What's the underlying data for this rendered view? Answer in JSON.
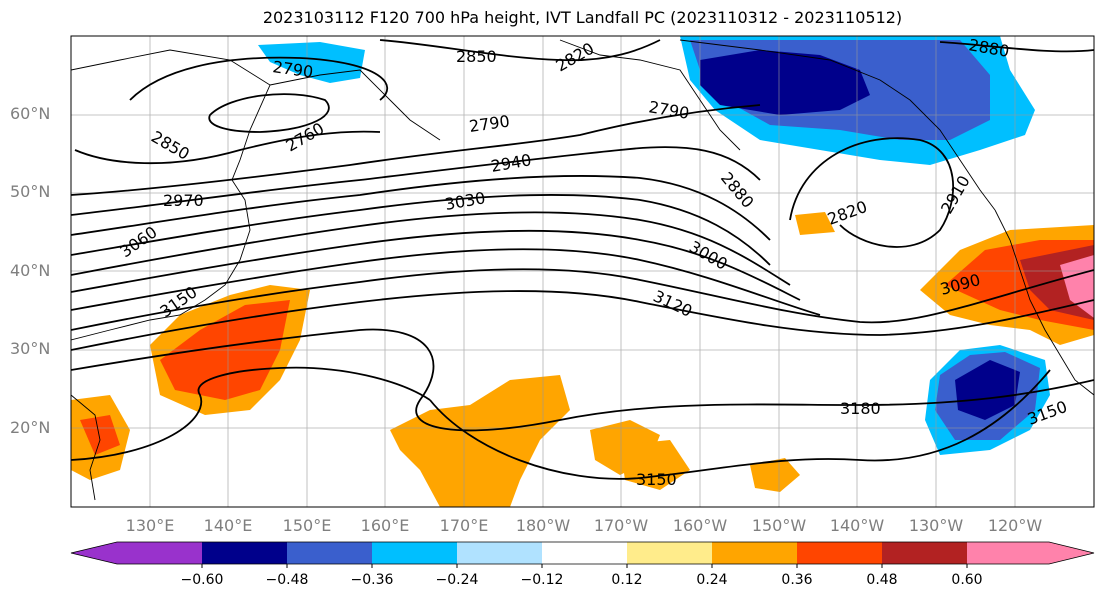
{
  "title": "2023103112 F120 700 hPa height, IVT Landfall PC (2023110312 - 2023110512)",
  "lat_labels": [
    "60°N",
    "50°N",
    "40°N",
    "30°N",
    "20°N"
  ],
  "lon_labels": [
    "130°E",
    "140°E",
    "150°E",
    "160°E",
    "170°E",
    "180°W",
    "170°W",
    "160°W",
    "150°W",
    "140°W",
    "130°W",
    "120°W"
  ],
  "contour_labels": [
    "2850",
    "2820",
    "2880",
    "2790",
    "2790",
    "2790",
    "2760",
    "2850",
    "2940",
    "2970",
    "3030",
    "2880",
    "2820",
    "2910",
    "3060",
    "3000",
    "3150",
    "3120",
    "3090",
    "3180",
    "3150",
    "3150"
  ],
  "colorbar": {
    "ticks": [
      "−0.60",
      "−0.48",
      "−0.36",
      "−0.24",
      "−0.12",
      "0.12",
      "0.24",
      "0.36",
      "0.48",
      "0.60"
    ],
    "colors": [
      "#9932cc",
      "#00008b",
      "#3a5fcd",
      "#00bfff",
      "#b0e2ff",
      "#ffffff",
      "#ffec8b",
      "#ffa500",
      "#ff4500",
      "#b22222",
      "#ff82ab"
    ]
  }
}
